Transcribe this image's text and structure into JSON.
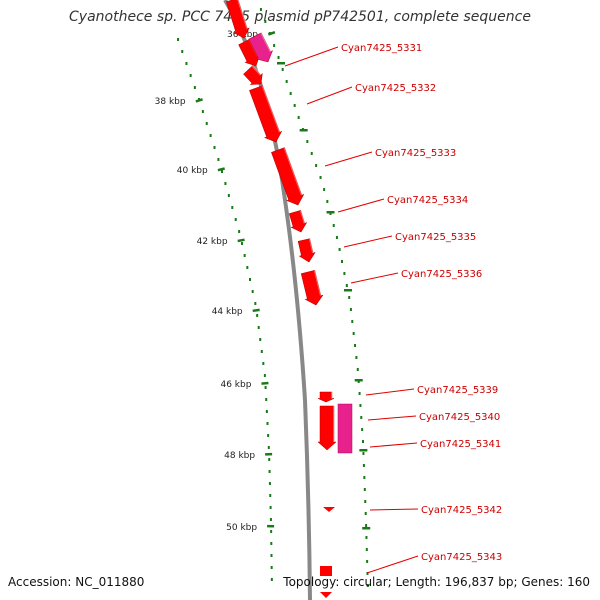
{
  "title": "Cyanothece sp. PCC 7425 plasmid pP742501, complete sequence",
  "footer": {
    "accession": "Accession: NC_011880",
    "summary": "Topology: circular; Length: 196,837 bp; Genes: 160"
  },
  "colors": {
    "gene": "#ff0000",
    "gene_highlight": "#e8218c",
    "backbone": "#888888",
    "tick": "#1a7a1a",
    "label": "#cc0000"
  },
  "ticks": [
    "36 kbp",
    "38 kbp",
    "40 kbp",
    "42 kbp",
    "44 kbp",
    "46 kbp",
    "48 kbp",
    "50 kbp"
  ],
  "genes": [
    "Cyan7425_5331",
    "Cyan7425_5332",
    "Cyan7425_5333",
    "Cyan7425_5334",
    "Cyan7425_5335",
    "Cyan7425_5336",
    "Cyan7425_5339",
    "Cyan7425_5340",
    "Cyan7425_5341",
    "Cyan7425_5342",
    "Cyan7425_5343"
  ]
}
